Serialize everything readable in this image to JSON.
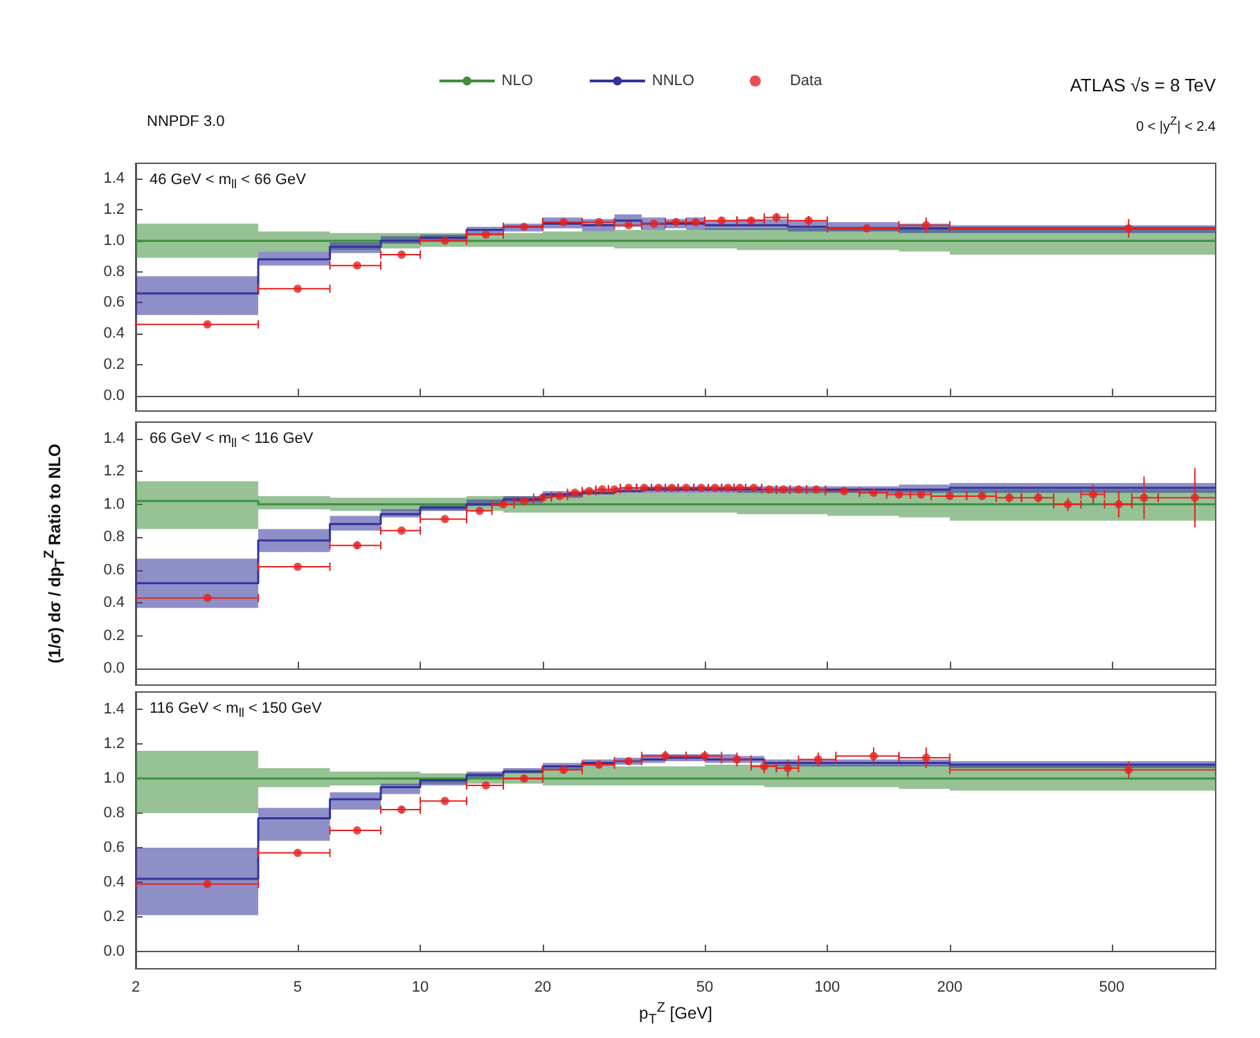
{
  "chart_data": [
    {
      "type": "line",
      "title": "46 GeV < m$_{ll}$ < 66 GeV",
      "subtitle": "NNPDF 3.0",
      "annotations": [
        "ATLAS  √s = 8 TeV",
        "0 < |y$^{Z}$| < 2.4"
      ],
      "legend": "top",
      "log": "x",
      "tick_labels": "y",
      "xlim": [
        2,
        900
      ],
      "xticks": [
        2,
        5,
        10,
        20,
        50,
        100,
        200,
        500
      ],
      "ylim": [
        -0.1,
        1.5
      ],
      "yticks": [
        {
          "value": 0,
          "label": "0.0"
        },
        {
          "value": 0.2,
          "label": "0.2"
        },
        {
          "value": 0.4,
          "label": "0.4"
        },
        {
          "value": 0.6,
          "label": "0.6"
        },
        {
          "value": 0.8,
          "label": "0.8"
        },
        {
          "value": 1,
          "label": "1.0"
        },
        {
          "value": 1.2,
          "label": "1.2"
        },
        {
          "value": 1.4,
          "label": "1.4"
        }
      ],
      "series": [
        {
          "name": "NLO",
          "type": "step",
          "color": "#3f8f3f",
          "x": [
            2,
            4,
            6,
            8,
            10,
            13,
            16,
            20,
            25,
            30,
            35,
            40,
            45,
            50,
            60,
            70,
            80,
            100,
            150,
            200,
            900
          ],
          "values": [
            1,
            1,
            1,
            1,
            1,
            1,
            1,
            1,
            1,
            1,
            1,
            1,
            1,
            1,
            1,
            1,
            1,
            1,
            1,
            1,
            1
          ],
          "lower": [
            0.89,
            0.93,
            0.94,
            0.95,
            0.96,
            0.96,
            0.96,
            0.96,
            0.96,
            0.95,
            0.95,
            0.95,
            0.95,
            0.95,
            0.94,
            0.94,
            0.94,
            0.94,
            0.93,
            0.91,
            0.91
          ],
          "upper": [
            1.11,
            1.06,
            1.05,
            1.05,
            1.05,
            1.05,
            1.05,
            1.06,
            1.06,
            1.07,
            1.07,
            1.07,
            1.07,
            1.08,
            1.08,
            1.08,
            1.08,
            1.09,
            1.09,
            1.09,
            1.09
          ]
        },
        {
          "name": "NNLO",
          "type": "step",
          "color": "#33339a",
          "x": [
            2,
            4,
            6,
            8,
            10,
            13,
            16,
            20,
            25,
            30,
            35,
            40,
            45,
            50,
            60,
            70,
            80,
            100,
            150,
            200,
            900
          ],
          "values": [
            0.66,
            0.88,
            0.96,
            1.0,
            1.02,
            1.07,
            1.09,
            1.11,
            1.1,
            1.13,
            1.11,
            1.11,
            1.11,
            1.1,
            1.1,
            1.1,
            1.09,
            1.08,
            1.08,
            1.08,
            1.08
          ],
          "lower": [
            0.52,
            0.84,
            0.92,
            0.98,
            1.0,
            1.04,
            1.06,
            1.08,
            1.06,
            1.09,
            1.07,
            1.08,
            1.07,
            1.07,
            1.07,
            1.07,
            1.06,
            1.06,
            1.05,
            1.05,
            1.05
          ],
          "upper": [
            0.77,
            0.93,
            0.99,
            1.03,
            1.04,
            1.09,
            1.11,
            1.15,
            1.14,
            1.17,
            1.15,
            1.14,
            1.15,
            1.13,
            1.14,
            1.14,
            1.13,
            1.12,
            1.11,
            1.1,
            1.1
          ]
        },
        {
          "name": "Data",
          "type": "scatter",
          "color": "#e52222",
          "marker": "circle",
          "x": [
            3,
            5,
            7,
            9,
            11.5,
            14.5,
            18,
            22.5,
            27.5,
            32.5,
            37.5,
            42.5,
            47.5,
            55,
            65,
            75,
            90,
            125,
            175,
            550
          ],
          "values": [
            0.46,
            0.69,
            0.84,
            0.91,
            1.0,
            1.04,
            1.09,
            1.12,
            1.12,
            1.1,
            1.11,
            1.12,
            1.12,
            1.13,
            1.13,
            1.15,
            1.13,
            1.08,
            1.1,
            1.08
          ],
          "xerrors": [
            [
              2,
              4
            ],
            [
              4,
              6
            ],
            [
              6,
              8
            ],
            [
              8,
              10
            ],
            [
              10,
              13
            ],
            [
              13,
              16
            ],
            [
              16,
              20
            ],
            [
              20,
              25
            ],
            [
              25,
              30
            ],
            [
              30,
              35
            ],
            [
              35,
              40
            ],
            [
              40,
              45
            ],
            [
              45,
              50
            ],
            [
              50,
              60
            ],
            [
              60,
              70
            ],
            [
              70,
              80
            ],
            [
              80,
              100
            ],
            [
              100,
              150
            ],
            [
              150,
              200
            ],
            [
              200,
              900
            ]
          ],
          "errors": [
            0.01,
            0.01,
            0.01,
            0.01,
            0.01,
            0.01,
            0.01,
            0.01,
            0.01,
            0.01,
            0.01,
            0.02,
            0.02,
            0.02,
            0.02,
            0.03,
            0.03,
            0.02,
            0.05,
            0.06
          ]
        }
      ]
    },
    {
      "type": "line",
      "title": "66 GeV < m$_{ll}$ < 116 GeV",
      "ylabel": "(1/σ) dσ / dp$_{T}$$^{Z}$  Ratio to NLO",
      "log": "x",
      "tick_labels": "y",
      "xlim": [
        2,
        900
      ],
      "xticks": [
        2,
        5,
        10,
        20,
        50,
        100,
        200,
        500
      ],
      "ylim": [
        -0.1,
        1.5
      ],
      "yticks": [
        {
          "value": 0,
          "label": "0.0"
        },
        {
          "value": 0.2,
          "label": "0.2"
        },
        {
          "value": 0.4,
          "label": "0.4"
        },
        {
          "value": 0.6,
          "label": "0.6"
        },
        {
          "value": 0.8,
          "label": "0.8"
        },
        {
          "value": 1,
          "label": "1.0"
        },
        {
          "value": 1.2,
          "label": "1.2"
        },
        {
          "value": 1.4,
          "label": "1.4"
        }
      ],
      "series": [
        {
          "type": "step",
          "color": "#3f8f3f",
          "x": [
            2,
            4,
            6,
            8,
            10,
            13,
            16,
            20,
            25,
            30,
            35,
            40,
            45,
            50,
            60,
            70,
            80,
            100,
            150,
            200,
            900
          ],
          "values": [
            1.02,
            1,
            1,
            1,
            1,
            1,
            1,
            1,
            1,
            1,
            1,
            1,
            1,
            1,
            1,
            1,
            1,
            1,
            1,
            1,
            1
          ],
          "lower": [
            0.85,
            0.97,
            0.96,
            0.96,
            0.96,
            0.96,
            0.95,
            0.95,
            0.95,
            0.95,
            0.95,
            0.95,
            0.95,
            0.95,
            0.94,
            0.94,
            0.94,
            0.93,
            0.92,
            0.9,
            0.9
          ],
          "upper": [
            1.14,
            1.05,
            1.04,
            1.04,
            1.04,
            1.05,
            1.05,
            1.06,
            1.07,
            1.07,
            1.07,
            1.07,
            1.07,
            1.07,
            1.08,
            1.08,
            1.08,
            1.08,
            1.09,
            1.09,
            1.09
          ]
        },
        {
          "type": "step",
          "color": "#33339a",
          "x": [
            2,
            4,
            6,
            8,
            10,
            13,
            16,
            20,
            25,
            30,
            35,
            40,
            45,
            50,
            60,
            70,
            80,
            100,
            150,
            200,
            900
          ],
          "values": [
            0.52,
            0.78,
            0.88,
            0.94,
            0.98,
            1.0,
            1.03,
            1.06,
            1.07,
            1.08,
            1.09,
            1.09,
            1.09,
            1.09,
            1.09,
            1.09,
            1.09,
            1.09,
            1.09,
            1.1,
            1.1
          ],
          "lower": [
            0.37,
            0.71,
            0.84,
            0.92,
            0.96,
            0.99,
            1.01,
            1.04,
            1.06,
            1.07,
            1.07,
            1.07,
            1.07,
            1.07,
            1.07,
            1.07,
            1.07,
            1.07,
            1.07,
            1.07,
            1.07
          ],
          "upper": [
            0.67,
            0.85,
            0.93,
            0.97,
            1.0,
            1.03,
            1.05,
            1.08,
            1.09,
            1.1,
            1.11,
            1.11,
            1.11,
            1.11,
            1.11,
            1.11,
            1.11,
            1.11,
            1.12,
            1.13,
            1.13
          ]
        },
        {
          "type": "scatter",
          "color": "#e52222",
          "marker": "circle",
          "x": [
            3,
            5,
            7,
            9,
            11.5,
            14,
            16,
            18,
            20,
            22,
            24,
            26,
            28,
            30,
            32.5,
            35.5,
            38.5,
            41.5,
            45,
            49,
            53,
            57,
            61,
            66,
            72,
            78,
            85,
            94,
            110,
            130,
            150,
            170,
            200,
            240,
            280,
            330,
            390,
            450,
            520,
            600,
            800
          ],
          "values": [
            0.43,
            0.62,
            0.75,
            0.84,
            0.91,
            0.96,
            1.0,
            1.02,
            1.04,
            1.05,
            1.07,
            1.08,
            1.09,
            1.09,
            1.1,
            1.1,
            1.1,
            1.1,
            1.1,
            1.1,
            1.1,
            1.1,
            1.1,
            1.1,
            1.09,
            1.09,
            1.09,
            1.09,
            1.08,
            1.07,
            1.06,
            1.06,
            1.05,
            1.05,
            1.04,
            1.04,
            1.0,
            1.06,
            1.0,
            1.04,
            1.04
          ],
          "xerrors": [
            [
              2,
              4
            ],
            [
              4,
              6
            ],
            [
              6,
              8
            ],
            [
              8,
              10
            ],
            [
              10,
              13
            ],
            [
              13,
              15
            ],
            [
              15,
              17
            ],
            [
              17,
              19
            ],
            [
              19,
              21
            ],
            [
              21,
              23
            ],
            [
              23,
              25
            ],
            [
              25,
              27
            ],
            [
              27,
              29
            ],
            [
              29,
              31
            ],
            [
              31,
              34
            ],
            [
              34,
              37
            ],
            [
              37,
              40
            ],
            [
              40,
              43
            ],
            [
              43,
              47
            ],
            [
              47,
              51
            ],
            [
              51,
              55
            ],
            [
              55,
              59
            ],
            [
              59,
              63
            ],
            [
              63,
              69
            ],
            [
              69,
              75
            ],
            [
              75,
              81
            ],
            [
              81,
              89
            ],
            [
              89,
              99
            ],
            [
              99,
              120
            ],
            [
              120,
              140
            ],
            [
              140,
              160
            ],
            [
              160,
              180
            ],
            [
              180,
              220
            ],
            [
              220,
              260
            ],
            [
              260,
              300
            ],
            [
              300,
              360
            ],
            [
              360,
              420
            ],
            [
              420,
              480
            ],
            [
              480,
              560
            ],
            [
              560,
              650
            ],
            [
              650,
              900
            ]
          ],
          "errors": [
            0.01,
            0.01,
            0.02,
            0.01,
            0.01,
            0.01,
            0.01,
            0.01,
            0.01,
            0.01,
            0.01,
            0.01,
            0.01,
            0.01,
            0.01,
            0.01,
            0.01,
            0.01,
            0.01,
            0.01,
            0.01,
            0.01,
            0.01,
            0.01,
            0.01,
            0.01,
            0.01,
            0.01,
            0.01,
            0.01,
            0.02,
            0.02,
            0.02,
            0.02,
            0.03,
            0.03,
            0.04,
            0.06,
            0.08,
            0.13,
            0.18
          ]
        }
      ]
    },
    {
      "type": "line",
      "title": "116 GeV < m$_{ll}$ < 150 GeV",
      "xlabel": "p$_{T}$$^{Z}$ [GeV]",
      "log": "x",
      "xlim": [
        2,
        900
      ],
      "xticks": [
        2,
        5,
        10,
        20,
        50,
        100,
        200,
        500
      ],
      "ylim": [
        -0.1,
        1.5
      ],
      "yticks": [
        {
          "value": 0,
          "label": "0.0"
        },
        {
          "value": 0.2,
          "label": "0.2"
        },
        {
          "value": 0.4,
          "label": "0.4"
        },
        {
          "value": 0.6,
          "label": "0.6"
        },
        {
          "value": 0.8,
          "label": "0.8"
        },
        {
          "value": 1,
          "label": "1.0"
        },
        {
          "value": 1.2,
          "label": "1.2"
        },
        {
          "value": 1.4,
          "label": "1.4"
        }
      ],
      "series": [
        {
          "type": "step",
          "color": "#3f8f3f",
          "x": [
            2,
            4,
            6,
            8,
            10,
            13,
            16,
            20,
            25,
            30,
            35,
            40,
            45,
            50,
            60,
            70,
            80,
            100,
            150,
            200,
            900
          ],
          "values": [
            1,
            1,
            1,
            1,
            1,
            1,
            1,
            1,
            1,
            1,
            1,
            1,
            1,
            1,
            1,
            1,
            1,
            1,
            1,
            1,
            1
          ],
          "lower": [
            0.8,
            0.95,
            0.96,
            0.96,
            0.97,
            0.97,
            0.97,
            0.96,
            0.96,
            0.96,
            0.96,
            0.96,
            0.96,
            0.96,
            0.96,
            0.95,
            0.95,
            0.95,
            0.94,
            0.93,
            0.93
          ],
          "upper": [
            1.16,
            1.06,
            1.04,
            1.04,
            1.03,
            1.03,
            1.05,
            1.06,
            1.07,
            1.07,
            1.07,
            1.07,
            1.07,
            1.08,
            1.08,
            1.08,
            1.08,
            1.08,
            1.08,
            1.08,
            1.08
          ]
        },
        {
          "type": "step",
          "color": "#33339a",
          "x": [
            2,
            4,
            6,
            8,
            10,
            13,
            16,
            20,
            25,
            30,
            35,
            40,
            45,
            50,
            60,
            70,
            80,
            100,
            150,
            200,
            900
          ],
          "values": [
            0.42,
            0.77,
            0.88,
            0.95,
            0.99,
            1.02,
            1.04,
            1.07,
            1.09,
            1.1,
            1.11,
            1.12,
            1.12,
            1.11,
            1.11,
            1.09,
            1.09,
            1.09,
            1.09,
            1.08,
            1.08
          ],
          "lower": [
            0.21,
            0.64,
            0.82,
            0.91,
            0.96,
            1.0,
            1.03,
            1.05,
            1.07,
            1.08,
            1.09,
            1.1,
            1.1,
            1.09,
            1.09,
            1.07,
            1.07,
            1.07,
            1.07,
            1.06,
            1.06
          ],
          "upper": [
            0.6,
            0.83,
            0.92,
            0.97,
            1.0,
            1.04,
            1.06,
            1.09,
            1.11,
            1.12,
            1.14,
            1.14,
            1.14,
            1.14,
            1.13,
            1.11,
            1.11,
            1.11,
            1.11,
            1.1,
            1.1
          ]
        },
        {
          "type": "scatter",
          "color": "#e52222",
          "marker": "circle",
          "x": [
            3,
            5,
            7,
            9,
            11.5,
            14.5,
            18,
            22.5,
            27.5,
            32.5,
            40,
            50,
            60,
            70,
            80,
            95,
            130,
            175,
            550
          ],
          "values": [
            0.39,
            0.57,
            0.7,
            0.82,
            0.87,
            0.96,
            1.0,
            1.05,
            1.08,
            1.1,
            1.13,
            1.13,
            1.11,
            1.07,
            1.06,
            1.11,
            1.13,
            1.12,
            1.05
          ],
          "xerrors": [
            [
              2,
              4
            ],
            [
              4,
              6
            ],
            [
              6,
              8
            ],
            [
              8,
              10
            ],
            [
              10,
              13
            ],
            [
              13,
              16
            ],
            [
              16,
              20
            ],
            [
              20,
              25
            ],
            [
              25,
              30
            ],
            [
              30,
              35
            ],
            [
              35,
              45
            ],
            [
              45,
              55
            ],
            [
              55,
              65
            ],
            [
              65,
              75
            ],
            [
              75,
              85
            ],
            [
              85,
              105
            ],
            [
              105,
              150
            ],
            [
              150,
              200
            ],
            [
              200,
              900
            ]
          ],
          "errors": [
            0.01,
            0.01,
            0.01,
            0.02,
            0.01,
            0.01,
            0.02,
            0.02,
            0.02,
            0.02,
            0.03,
            0.03,
            0.04,
            0.04,
            0.05,
            0.04,
            0.05,
            0.06,
            0.05
          ]
        }
      ]
    }
  ]
}
